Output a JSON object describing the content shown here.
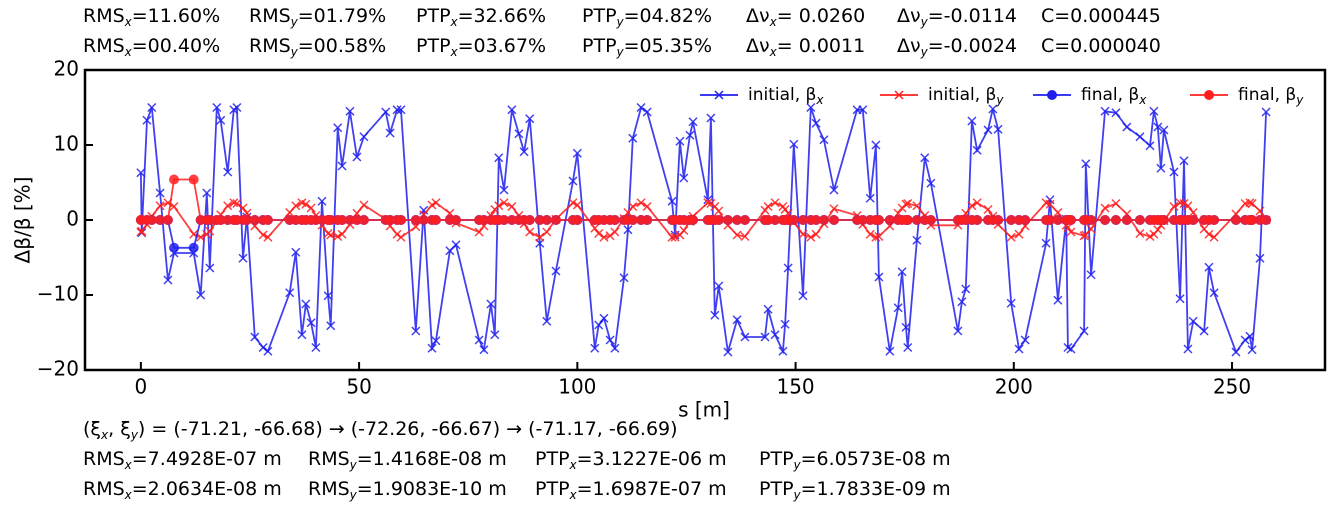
{
  "chart_data": {
    "type": "line",
    "header": [
      [
        [
          {
            "t": "RMS"
          },
          {
            "sub": "x"
          },
          {
            "t": "=11.60%"
          }
        ],
        [
          {
            "t": "RMS"
          },
          {
            "sub": "y"
          },
          {
            "t": "=01.79%"
          }
        ],
        [
          {
            "t": "PTP"
          },
          {
            "sub": "x"
          },
          {
            "t": "=32.66%"
          }
        ],
        [
          {
            "t": "PTP"
          },
          {
            "sub": "y"
          },
          {
            "t": "=04.82%"
          }
        ],
        [
          {
            "t": "Δν"
          },
          {
            "sub": "x"
          },
          {
            "t": "= 0.0260"
          }
        ],
        [
          {
            "t": "Δν"
          },
          {
            "sub": "y"
          },
          {
            "t": "=-0.0114"
          }
        ],
        [
          {
            "t": "C=0.000445"
          }
        ]
      ],
      [
        [
          {
            "t": "RMS"
          },
          {
            "sub": "x"
          },
          {
            "t": "=00.40%"
          }
        ],
        [
          {
            "t": "RMS"
          },
          {
            "sub": "y"
          },
          {
            "t": "=00.58%"
          }
        ],
        [
          {
            "t": "PTP"
          },
          {
            "sub": "x"
          },
          {
            "t": "=03.67%"
          }
        ],
        [
          {
            "t": "PTP"
          },
          {
            "sub": "y"
          },
          {
            "t": "=05.35%"
          }
        ],
        [
          {
            "t": "Δν"
          },
          {
            "sub": "x"
          },
          {
            "t": "= 0.0011"
          }
        ],
        [
          {
            "t": "Δν"
          },
          {
            "sub": "y"
          },
          {
            "t": "=-0.0024"
          }
        ],
        [
          {
            "t": "C=0.000040"
          }
        ]
      ]
    ],
    "footer": [
      [
        [
          {
            "t": "(ξ"
          },
          {
            "sub": "x"
          },
          {
            "t": ", ξ"
          },
          {
            "sub": "y"
          },
          {
            "t": ") = (-71.21, -66.68) → (-72.26, -66.67) → (-71.17, -66.69)"
          }
        ]
      ],
      [
        [
          {
            "t": "RMS"
          },
          {
            "sub": "x"
          },
          {
            "t": "=7.4928E-07 m"
          }
        ],
        [
          {
            "t": "RMS"
          },
          {
            "sub": "y"
          },
          {
            "t": "=1.4168E-08 m"
          }
        ],
        [
          {
            "t": "PTP"
          },
          {
            "sub": "x"
          },
          {
            "t": "=3.1227E-06 m"
          }
        ],
        [
          {
            "t": "PTP"
          },
          {
            "sub": "y"
          },
          {
            "t": "=6.0573E-08 m"
          }
        ]
      ],
      [
        [
          {
            "t": "RMS"
          },
          {
            "sub": "x"
          },
          {
            "t": "=2.0634E-08 m"
          }
        ],
        [
          {
            "t": "RMS"
          },
          {
            "sub": "y"
          },
          {
            "t": "=1.9083E-10 m"
          }
        ],
        [
          {
            "t": "PTP"
          },
          {
            "sub": "x"
          },
          {
            "t": "=1.6987E-07 m"
          }
        ],
        [
          {
            "t": "PTP"
          },
          {
            "sub": "y"
          },
          {
            "t": "=1.7833E-09 m"
          }
        ]
      ]
    ],
    "x_label": "s [m]",
    "y_label": "Δβ/β [%]",
    "xlim": [
      -12.8,
      271.3
    ],
    "xticks": [
      0,
      50,
      100,
      150,
      200,
      250
    ],
    "ylim": [
      -20,
      20
    ],
    "yticks": [
      {
        "value": -20,
        "label": "−20"
      },
      {
        "value": -10,
        "label": "−10"
      },
      0,
      10,
      20
    ],
    "legend": "upper right",
    "x": [
      0,
      0.2,
      1.4,
      2.5,
      4.4,
      6.2,
      7.6,
      12.1,
      13.7,
      15.1,
      15.8,
      17.4,
      18.3,
      19.9,
      21.3,
      22,
      23.4,
      24.3,
      26.1,
      28,
      29.1,
      34.1,
      35.5,
      36.9,
      37.8,
      39,
      40.1,
      41.5,
      42.9,
      43.5,
      45.1,
      46.1,
      47.9,
      49.5,
      51.1,
      56.1,
      57.1,
      58.7,
      59.6,
      63,
      64.8,
      66.7,
      67.6,
      70.8,
      72.2,
      77.5,
      78.6,
      80.2,
      81.1,
      82,
      83.2,
      85,
      86.6,
      87.8,
      89.1,
      91.4,
      93,
      95.1,
      99,
      100,
      104,
      104.9,
      106.1,
      107.5,
      108.6,
      110.7,
      111.6,
      112.7,
      114.6,
      116,
      121.7,
      122.4,
      123.5,
      124.4,
      125.8,
      126.5,
      129.9,
      130.6,
      131.5,
      132.4,
      134.5,
      136.6,
      138.4,
      143,
      143.7,
      145.3,
      147.1,
      147.6,
      148.3,
      149.6,
      151.7,
      153.5,
      154.7,
      156.5,
      158.8,
      164.1,
      165.4,
      167.1,
      168.4,
      169.1,
      171.6,
      173.5,
      174.4,
      175.3,
      175.7,
      177.8,
      179.6,
      181,
      187.2,
      188.1,
      189,
      190.4,
      191.6,
      194.1,
      195.2,
      196.4,
      199.4,
      201.2,
      202.6,
      207.4,
      208.3,
      210.1,
      212,
      212.4,
      213.1,
      216.1,
      216.5,
      217.7,
      220.9,
      223.4,
      225.9,
      228.9,
      231.2,
      232.1,
      233,
      233.7,
      234.4,
      236.7,
      238.1,
      239,
      239.9,
      241.1,
      243.6,
      244.7,
      245.9,
      250.9,
      253,
      254.1,
      254.6,
      256.4,
      257.8
    ],
    "series": [
      {
        "name": "initial, β",
        "name_sub": "x",
        "color": "#1f1fee",
        "marker": "x",
        "values": [
          6.3,
          -1.7,
          13.3,
          15,
          3.6,
          -8,
          -4.4,
          -4.4,
          -10,
          3.6,
          -6.4,
          15,
          13.3,
          6.4,
          14.7,
          15,
          -5.1,
          0.4,
          -15.6,
          -17,
          -17.5,
          -9.7,
          -4.3,
          -15.3,
          -11.2,
          -13.7,
          -17,
          2.5,
          -10.1,
          -14.1,
          12.3,
          7.2,
          14.5,
          8.4,
          11.1,
          14.4,
          11.6,
          14.7,
          14.7,
          -14.8,
          1.3,
          -17.1,
          -16.1,
          -4.1,
          -3.3,
          -16,
          -17.3,
          -11.2,
          -15.3,
          8.3,
          4,
          14.7,
          11.5,
          9.1,
          13.5,
          -3.1,
          -13.5,
          -6.8,
          5.2,
          8.9,
          -17.1,
          -14,
          -13.1,
          -16,
          -17.1,
          -7.7,
          -1.3,
          10.9,
          15,
          14.4,
          2.5,
          -2,
          10.5,
          5.6,
          11.3,
          13.1,
          2.7,
          13.6,
          -12.7,
          -8.8,
          -17.6,
          -13.3,
          -15.6,
          -15.6,
          -11.9,
          -15.3,
          -17.5,
          -13.9,
          -6.4,
          10.1,
          -10.1,
          15,
          12.9,
          10.7,
          4,
          14.7,
          14.7,
          2.9,
          10,
          -7.6,
          -17.5,
          -11.7,
          -6.9,
          -14.3,
          -17,
          -2.7,
          8.3,
          4.9,
          -14.8,
          -10.9,
          -9.2,
          13.2,
          9.3,
          12,
          14.8,
          12.1,
          -11.1,
          -17.2,
          -16,
          -3.1,
          2.7,
          -10.7,
          0.1,
          -17,
          -17.2,
          -14.8,
          7.5,
          -7.3,
          14.5,
          14.3,
          12.4,
          11.1,
          9.9,
          14.5,
          12.4,
          6.9,
          12,
          6.4,
          -10.5,
          7.9,
          -17.2,
          -13.5,
          -14.8,
          -6.3,
          -9.7,
          -17.6,
          -16,
          -15.5,
          -17.3,
          -5.1,
          14.4
        ]
      },
      {
        "name": "initial, β",
        "name_sub": "y",
        "color": "#ff1f1f",
        "marker": "x",
        "values": [
          -1.6,
          -1.5,
          -0.6,
          0.5,
          1.9,
          2.3,
          1.8,
          -1.9,
          -2.3,
          -1.9,
          -1.5,
          -0.1,
          0.7,
          1.9,
          2.3,
          2.2,
          1.6,
          0.9,
          -0.8,
          -2,
          -2.3,
          1,
          1.9,
          2.3,
          2.1,
          1.6,
          0.6,
          -0.7,
          -1.8,
          -2,
          -2.2,
          -1.9,
          -0.6,
          0.9,
          2,
          0.1,
          -0.8,
          -1.9,
          -2.3,
          -0.9,
          0.7,
          2,
          2.3,
          0.9,
          -0.4,
          -1.6,
          -0.8,
          0.6,
          1.4,
          1.9,
          2.3,
          1.8,
          0.6,
          -0.5,
          -1.6,
          -2.3,
          -1.6,
          0.1,
          2.3,
          2,
          -1.1,
          -1.8,
          -2.3,
          -2.1,
          -1.6,
          0.2,
          1,
          1.8,
          2.3,
          1.8,
          -2.3,
          -2.3,
          -2,
          -1.4,
          -0.2,
          0.5,
          2.3,
          2.2,
          1.8,
          1.2,
          -0.7,
          -2,
          -2.2,
          1.3,
          1.8,
          2.3,
          1.8,
          1.4,
          0.9,
          -0.3,
          -1.9,
          -2.3,
          -1.9,
          -0.5,
          1.5,
          0.6,
          -0.6,
          -1.9,
          -2.3,
          -2.2,
          -0.8,
          0.9,
          1.6,
          2.1,
          2.2,
          1.9,
          0.6,
          -0.7,
          -0.7,
          0.1,
          0.9,
          1.9,
          2.3,
          1.4,
          0.5,
          -0.6,
          -2.3,
          -1.9,
          -0.8,
          2.3,
          2.1,
          1,
          -0.7,
          -1,
          -1.6,
          -2.1,
          -2,
          -1.2,
          1.6,
          2.2,
          0.8,
          -1.8,
          -2.2,
          -1.9,
          -1.3,
          -0.7,
          -0.1,
          1.8,
          2.3,
          2.2,
          1.9,
          1,
          -1.2,
          -1.9,
          -2.3,
          0.8,
          2.2,
          2.3,
          2.2,
          1.2,
          0
        ]
      },
      {
        "name": "final, β",
        "name_sub": "x",
        "color": "#1f1fee",
        "marker": "o",
        "values": [
          0,
          0,
          0,
          0,
          0,
          0,
          -3.7,
          -3.7,
          0,
          0,
          0,
          0,
          0,
          0,
          0,
          0,
          0,
          0,
          0,
          0,
          0,
          0,
          0,
          0,
          0,
          0,
          0,
          0,
          0,
          0,
          0,
          0,
          0,
          0,
          0,
          0,
          0,
          0,
          0,
          0,
          0,
          0,
          0,
          0,
          0,
          0,
          0,
          0,
          0,
          0,
          0,
          0,
          0,
          0,
          0,
          0,
          0,
          0,
          0,
          0,
          0,
          0,
          0,
          0,
          0,
          0,
          0,
          0,
          0,
          0,
          0,
          0,
          0,
          0,
          0,
          0,
          0,
          0,
          0,
          0,
          0,
          0,
          0,
          0,
          0,
          0,
          0,
          0,
          0,
          0,
          0,
          0,
          0,
          0,
          0,
          0,
          0,
          0,
          0,
          0,
          0,
          0,
          0,
          0,
          0,
          0,
          0,
          0,
          0,
          0,
          0,
          0,
          0,
          0,
          0,
          0,
          0,
          0,
          0,
          0,
          0,
          0,
          0,
          0,
          0,
          0,
          0,
          0,
          0,
          0,
          0,
          0,
          0,
          0,
          0,
          0,
          0,
          0,
          0,
          0,
          0,
          0,
          0,
          0,
          0,
          0,
          0,
          0,
          0,
          0,
          0
        ]
      },
      {
        "name": "final, β",
        "name_sub": "y",
        "color": "#ff1f1f",
        "marker": "o",
        "values": [
          0,
          0,
          0,
          0,
          0,
          0,
          5.4,
          5.4,
          0,
          0,
          0,
          0,
          0,
          0,
          0,
          0,
          0,
          0,
          0,
          0,
          0,
          0,
          0,
          0,
          0,
          0,
          0,
          0,
          0,
          0,
          0,
          0,
          0,
          0,
          0,
          0,
          0,
          0,
          0,
          0,
          0,
          0,
          0,
          0,
          0,
          0,
          0,
          0,
          0,
          0,
          0,
          0,
          0,
          0,
          0,
          0,
          0,
          0,
          0,
          0,
          0,
          0,
          0,
          0,
          0,
          0,
          0,
          0,
          0,
          0,
          0,
          0,
          0,
          0,
          0,
          0,
          0,
          0,
          0,
          0,
          0,
          0,
          0,
          0,
          0,
          0,
          0,
          0,
          0,
          0,
          0,
          0,
          0,
          0,
          0,
          0,
          0,
          0,
          0,
          0,
          0,
          0,
          0,
          0,
          0,
          0,
          0,
          0,
          0,
          0,
          0,
          0,
          0,
          0,
          0,
          0,
          0,
          0,
          0,
          0,
          0,
          0,
          0,
          0,
          0,
          0,
          0,
          0,
          0,
          0,
          0,
          0,
          0,
          0,
          0,
          0,
          0,
          0,
          0,
          0,
          0,
          0,
          0,
          0,
          0,
          0,
          0,
          0,
          0,
          0,
          0
        ]
      }
    ]
  }
}
